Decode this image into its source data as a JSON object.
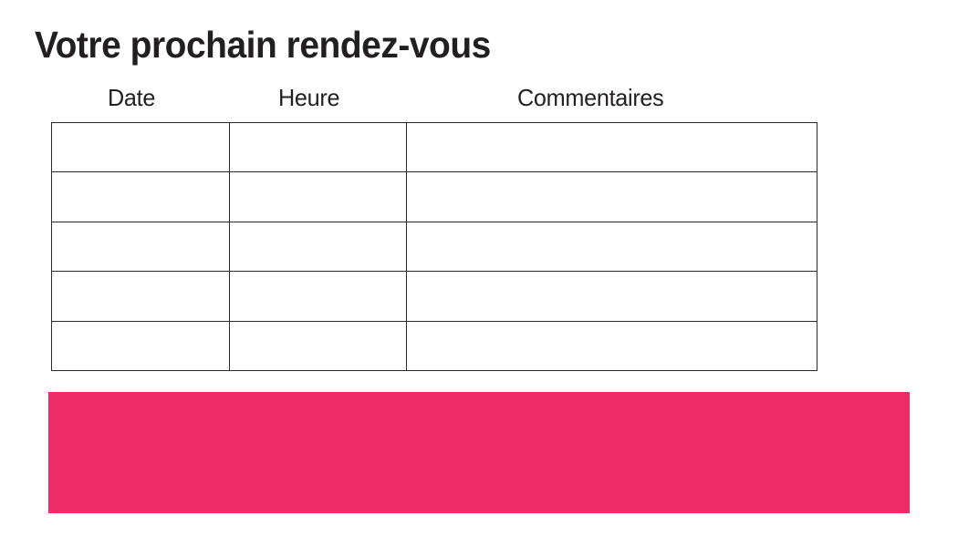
{
  "page": {
    "title": "Votre prochain rendez-vous"
  },
  "table": {
    "columns": [
      "Date",
      "Heure",
      "Commentaires"
    ],
    "rows": [
      [
        "",
        "",
        ""
      ],
      [
        "",
        "",
        ""
      ],
      [
        "",
        "",
        ""
      ],
      [
        "",
        "",
        ""
      ],
      [
        "",
        "",
        ""
      ]
    ]
  },
  "colors": {
    "accent_pink": "#ED2B66",
    "text_black": "#231F20",
    "table_border": "#2B2B2B"
  }
}
